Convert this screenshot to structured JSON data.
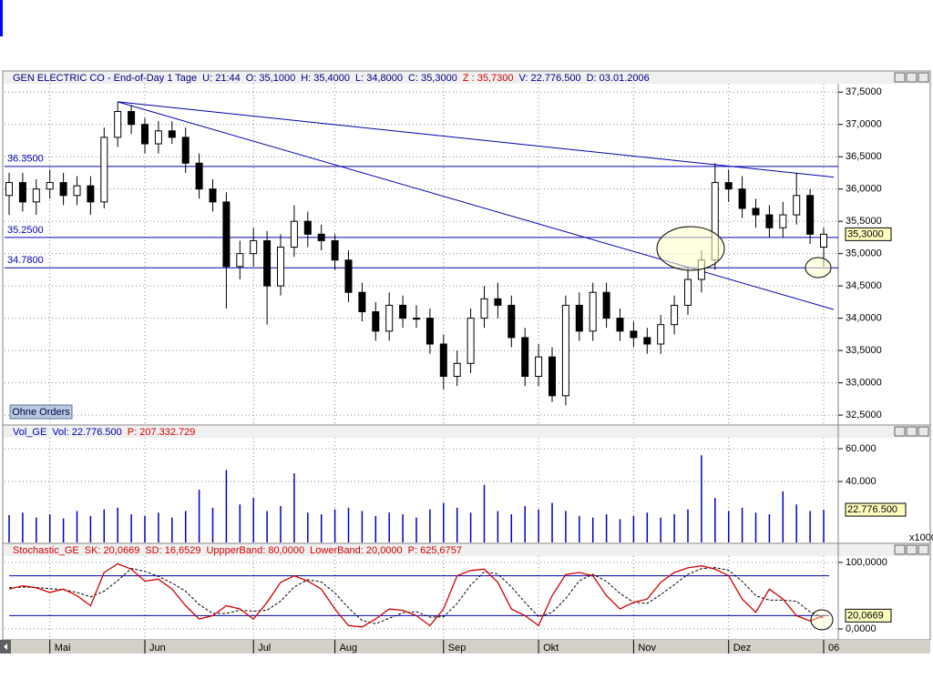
{
  "chart_data": [
    {
      "type": "candlestick",
      "header": [
        {
          "text": "GEN ELECTRIC CO - End-of-Day 1 Tage",
          "color": "#000080"
        },
        {
          "text": "U: 21:44",
          "color": "#000080"
        },
        {
          "text": "O: 35,1000",
          "color": "#000080"
        },
        {
          "text": "H: 35,4000",
          "color": "#000080"
        },
        {
          "text": "L: 34,8000",
          "color": "#000080"
        },
        {
          "text": "C: 35,3000",
          "color": "#000080"
        },
        {
          "text": "Z : 35,7300",
          "color": "#d00000"
        },
        {
          "text": "V: 22.776.500",
          "color": "#000080"
        },
        {
          "text": "D: 03.01.2006",
          "color": "#000080"
        }
      ],
      "categories": [
        null,
        null,
        null,
        "Mai",
        null,
        null,
        null,
        null,
        null,
        null,
        "Jun",
        null,
        null,
        null,
        null,
        null,
        null,
        null,
        "Jul",
        null,
        null,
        null,
        null,
        null,
        "Aug",
        null,
        null,
        null,
        null,
        null,
        null,
        null,
        "Sep",
        null,
        null,
        null,
        null,
        null,
        null,
        "Okt",
        null,
        null,
        null,
        null,
        null,
        null,
        "Nov",
        null,
        null,
        null,
        null,
        null,
        null,
        "Dez",
        null,
        null,
        null,
        null,
        null,
        null,
        "06"
      ],
      "open": [
        35.9,
        36.1,
        35.8,
        36.0,
        36.1,
        35.9,
        36.05,
        35.8,
        36.8,
        37.2,
        37.0,
        36.7,
        36.9,
        36.8,
        36.4,
        36.0,
        35.8,
        34.8,
        35.0,
        35.2,
        34.5,
        35.1,
        35.5,
        35.3,
        35.2,
        34.9,
        34.4,
        34.1,
        33.8,
        34.2,
        34.0,
        34.0,
        33.6,
        33.1,
        33.3,
        34.0,
        34.3,
        34.2,
        33.7,
        33.1,
        33.4,
        32.8,
        34.2,
        33.8,
        34.4,
        34.0,
        33.8,
        33.7,
        33.6,
        33.9,
        34.2,
        34.6,
        34.9,
        36.1,
        36.0,
        35.7,
        35.6,
        35.4,
        35.6,
        35.9,
        35.1
      ],
      "high": [
        36.25,
        36.25,
        36.15,
        36.3,
        36.25,
        36.2,
        36.2,
        36.95,
        37.35,
        37.3,
        37.1,
        37.05,
        37.05,
        36.95,
        36.55,
        36.15,
        35.95,
        35.2,
        35.4,
        35.35,
        35.3,
        35.75,
        35.65,
        35.45,
        35.3,
        35.05,
        34.55,
        34.25,
        34.4,
        34.35,
        34.2,
        34.15,
        33.75,
        33.5,
        34.15,
        34.5,
        34.55,
        34.35,
        33.85,
        33.6,
        33.55,
        34.35,
        34.4,
        34.55,
        34.55,
        34.15,
        33.95,
        33.85,
        34.05,
        34.35,
        34.8,
        35.05,
        36.4,
        36.3,
        36.2,
        35.85,
        35.75,
        35.8,
        36.25,
        36.0,
        35.4
      ],
      "low": [
        35.6,
        35.65,
        35.6,
        35.85,
        35.75,
        35.75,
        35.6,
        35.7,
        36.65,
        36.85,
        36.55,
        36.55,
        36.7,
        36.25,
        35.85,
        35.65,
        34.15,
        34.6,
        34.8,
        33.9,
        34.35,
        34.95,
        35.1,
        35.05,
        34.75,
        34.25,
        33.95,
        33.65,
        33.65,
        33.85,
        33.85,
        33.45,
        32.9,
        32.95,
        33.15,
        33.85,
        34.0,
        33.55,
        32.95,
        32.95,
        32.7,
        32.65,
        33.65,
        33.65,
        33.85,
        33.65,
        33.55,
        33.45,
        33.45,
        33.75,
        34.05,
        34.4,
        34.75,
        35.8,
        35.55,
        35.4,
        35.25,
        35.25,
        35.45,
        35.15,
        34.8
      ],
      "close": [
        36.1,
        35.8,
        36.0,
        36.1,
        35.9,
        36.05,
        35.8,
        36.8,
        37.2,
        37.0,
        36.7,
        36.9,
        36.8,
        36.4,
        36.0,
        35.8,
        34.8,
        35.0,
        35.2,
        34.5,
        35.1,
        35.5,
        35.3,
        35.2,
        34.9,
        34.4,
        34.1,
        33.8,
        34.2,
        34.0,
        34.0,
        33.6,
        33.1,
        33.3,
        34.0,
        34.3,
        34.2,
        33.7,
        33.1,
        33.4,
        32.8,
        34.2,
        33.8,
        34.4,
        34.0,
        33.8,
        33.7,
        33.6,
        33.9,
        34.2,
        34.6,
        34.9,
        36.1,
        36.0,
        35.7,
        35.6,
        35.4,
        35.6,
        35.9,
        35.3,
        35.3
      ],
      "color": "#000000",
      "ylim": [
        32.36,
        37.63
      ],
      "yticks": [
        {
          "value": 32.5,
          "label": "32,5000"
        },
        {
          "value": 33,
          "label": "33,0000"
        },
        {
          "value": 33.5,
          "label": "33,5000"
        },
        {
          "value": 34,
          "label": "34,0000"
        },
        {
          "value": 34.5,
          "label": "34,5000"
        },
        {
          "value": 35,
          "label": "35,0000"
        },
        {
          "value": 35.5,
          "label": "35,5000"
        },
        {
          "value": 36,
          "label": "36,0000"
        },
        {
          "value": 36.5,
          "label": "36,5000"
        },
        {
          "value": 37,
          "label": "37,0000"
        },
        {
          "value": 37.5,
          "label": "37,5000"
        }
      ],
      "grid": true,
      "hlines": [
        {
          "value": 36.35,
          "label": "36.3500"
        },
        {
          "value": 35.25,
          "label": "35.2500"
        },
        {
          "value": 34.78,
          "label": "34.7800"
        }
      ],
      "line_color": "#0000b0",
      "trendlines": [
        {
          "x": [
            8,
            60
          ],
          "y": [
            37.35,
            36.2
          ]
        },
        {
          "x": [
            8,
            60
          ],
          "y": [
            37.35,
            34.18
          ]
        }
      ],
      "last_value": {
        "value": 35.3,
        "label": "35,3000"
      },
      "button": "Ohne Orders"
    },
    {
      "type": "bar",
      "header": [
        {
          "text": "Vol_GE",
          "color": "#0000b0"
        },
        {
          "text": "Vol: 22.776.500",
          "color": "#0000b0"
        },
        {
          "text": "P: 207.332.729",
          "color": "#d00000"
        }
      ],
      "values": [
        19500000,
        21000000,
        18000000,
        20000000,
        17500000,
        22000000,
        19000000,
        23000000,
        24000000,
        20000000,
        19000000,
        21000000,
        18000000,
        22000000,
        35000000,
        24000000,
        47000000,
        26000000,
        30000000,
        22000000,
        25000000,
        45000000,
        21000000,
        20000000,
        23000000,
        24000000,
        22000000,
        19000000,
        21000000,
        20000000,
        18000000,
        23000000,
        27000000,
        24000000,
        21000000,
        38000000,
        22000000,
        20000000,
        25000000,
        23000000,
        27000000,
        22000000,
        19000000,
        18000000,
        20000000,
        17000000,
        19000000,
        21000000,
        18000000,
        20000000,
        23000000,
        56000000,
        30000000,
        22000000,
        24000000,
        21000000,
        20000000,
        34000000,
        26000000,
        22000000,
        22776500
      ],
      "color": "#0000c0",
      "ylim": [
        2800000,
        66700000
      ],
      "yticks": [
        {
          "value": 40000000,
          "label": "40.000"
        },
        {
          "value": 60000000,
          "label": "60.000"
        }
      ],
      "grid": true,
      "unit_note": "x1000",
      "last_value": {
        "value": 22776500,
        "label": "22.776.500"
      }
    },
    {
      "type": "line",
      "header": [
        {
          "text": "Stochastic_GE",
          "color": "#d00000"
        },
        {
          "text": "SK: 20,0669",
          "color": "#d00000"
        },
        {
          "text": "SD: 16,6529",
          "color": "#d00000"
        },
        {
          "text": "UppperBand: 80,0000",
          "color": "#d00000"
        },
        {
          "text": "LowerBand: 20,0000",
          "color": "#d00000"
        },
        {
          "text": "P: 625,6757",
          "color": "#d00000"
        }
      ],
      "series": [
        {
          "color": "#d00000",
          "dashed": false,
          "values": [
            60,
            65,
            62,
            55,
            60,
            50,
            35,
            85,
            98,
            90,
            72,
            75,
            60,
            35,
            15,
            20,
            35,
            30,
            15,
            40,
            70,
            80,
            72,
            60,
            30,
            5,
            3,
            15,
            30,
            28,
            20,
            5,
            30,
            80,
            88,
            90,
            70,
            30,
            20,
            5,
            50,
            82,
            85,
            80,
            50,
            30,
            40,
            45,
            70,
            85,
            92,
            95,
            90,
            80,
            45,
            25,
            60,
            45,
            20,
            12,
            20.0669
          ]
        },
        {
          "color": "#000000",
          "dashed": true,
          "values": [
            62,
            63,
            62.3,
            60.7,
            59,
            55,
            48.3,
            56.7,
            72.7,
            91,
            86.7,
            79,
            69,
            56.7,
            36.7,
            23.3,
            23.3,
            28.3,
            26.7,
            28.3,
            41.7,
            63.3,
            74,
            70.7,
            54,
            31.7,
            12.7,
            7.7,
            16,
            24.3,
            26,
            17.7,
            18.3,
            38.3,
            66,
            86,
            82.7,
            63.3,
            40,
            18.3,
            25,
            45.7,
            72.3,
            82.3,
            71.7,
            53.3,
            40,
            38.3,
            51.7,
            66.7,
            82.3,
            90.7,
            92.3,
            88.3,
            71.7,
            50,
            43.3,
            43.3,
            41.7,
            25.7,
            16.6529
          ]
        }
      ],
      "bands": [
        80,
        20
      ],
      "band_color": "#0000b0",
      "ylim": [
        -16.4,
        109.6
      ],
      "yticks": [
        {
          "value": 0,
          "label": "0,0000"
        },
        {
          "value": 100,
          "label": "100,0000"
        }
      ],
      "grid": true,
      "last_value": {
        "value": 20.0669,
        "label": "20,0669"
      }
    }
  ]
}
